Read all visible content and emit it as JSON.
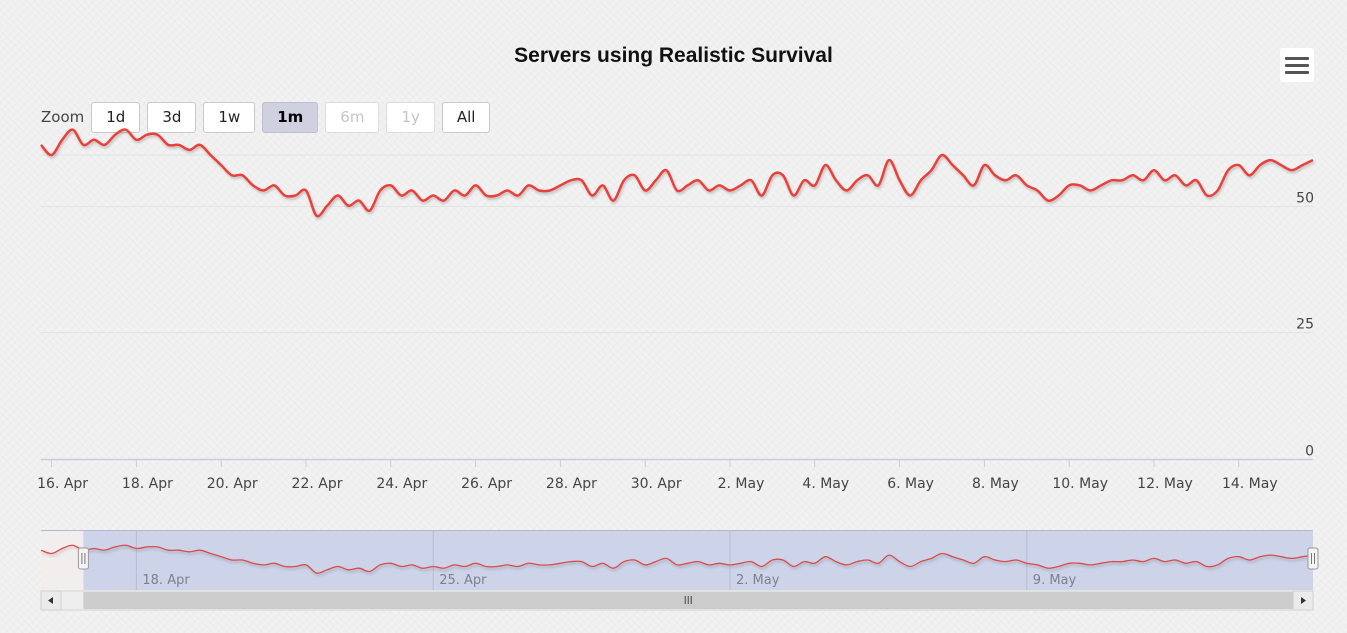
{
  "chart_data": {
    "type": "line",
    "title": "Servers using Realistic Survival",
    "zoom": {
      "label": "Zoom",
      "buttons": [
        {
          "label": "1d",
          "state": "normal"
        },
        {
          "label": "3d",
          "state": "normal"
        },
        {
          "label": "1w",
          "state": "normal"
        },
        {
          "label": "1m",
          "state": "active"
        },
        {
          "label": "6m",
          "state": "disabled"
        },
        {
          "label": "1y",
          "state": "disabled"
        },
        {
          "label": "All",
          "state": "normal"
        }
      ]
    },
    "xlim": [
      "2024-04-15T18:00",
      "2024-05-15T18:00"
    ],
    "ylim": [
      0,
      60
    ],
    "y_ticks": [
      0,
      25,
      50
    ],
    "x_ticks": [
      {
        "date": "2024-04-16",
        "label": "16. Apr"
      },
      {
        "date": "2024-04-18",
        "label": "18. Apr"
      },
      {
        "date": "2024-04-20",
        "label": "20. Apr"
      },
      {
        "date": "2024-04-22",
        "label": "22. Apr"
      },
      {
        "date": "2024-04-24",
        "label": "24. Apr"
      },
      {
        "date": "2024-04-26",
        "label": "26. Apr"
      },
      {
        "date": "2024-04-28",
        "label": "28. Apr"
      },
      {
        "date": "2024-04-30",
        "label": "30. Apr"
      },
      {
        "date": "2024-05-02",
        "label": "2. May"
      },
      {
        "date": "2024-05-04",
        "label": "4. May"
      },
      {
        "date": "2024-05-06",
        "label": "6. May"
      },
      {
        "date": "2024-05-08",
        "label": "8. May"
      },
      {
        "date": "2024-05-10",
        "label": "10. May"
      },
      {
        "date": "2024-05-12",
        "label": "12. May"
      },
      {
        "date": "2024-05-14",
        "label": "14. May"
      }
    ],
    "grid": true,
    "series": [
      {
        "color": "#e8403a",
        "x": [
          "2024-04-15T18:00",
          "2024-04-16T00:00",
          "2024-04-16T06:00",
          "2024-04-16T12:00",
          "2024-04-16T18:00",
          "2024-04-17T00:00",
          "2024-04-17T06:00",
          "2024-04-17T12:00",
          "2024-04-17T18:00",
          "2024-04-18T00:00",
          "2024-04-18T06:00",
          "2024-04-18T12:00",
          "2024-04-18T18:00",
          "2024-04-19T00:00",
          "2024-04-19T06:00",
          "2024-04-19T12:00",
          "2024-04-19T18:00",
          "2024-04-20T00:00",
          "2024-04-20T06:00",
          "2024-04-20T12:00",
          "2024-04-20T18:00",
          "2024-04-21T00:00",
          "2024-04-21T06:00",
          "2024-04-21T12:00",
          "2024-04-21T18:00",
          "2024-04-22T00:00",
          "2024-04-22T06:00",
          "2024-04-22T12:00",
          "2024-04-22T18:00",
          "2024-04-23T00:00",
          "2024-04-23T06:00",
          "2024-04-23T12:00",
          "2024-04-23T18:00",
          "2024-04-24T00:00",
          "2024-04-24T06:00",
          "2024-04-24T12:00",
          "2024-04-24T18:00",
          "2024-04-25T00:00",
          "2024-04-25T06:00",
          "2024-04-25T12:00",
          "2024-04-25T18:00",
          "2024-04-26T00:00",
          "2024-04-26T06:00",
          "2024-04-26T12:00",
          "2024-04-26T18:00",
          "2024-04-27T00:00",
          "2024-04-27T06:00",
          "2024-04-27T12:00",
          "2024-04-27T18:00",
          "2024-04-28T00:00",
          "2024-04-28T06:00",
          "2024-04-28T12:00",
          "2024-04-28T18:00",
          "2024-04-29T00:00",
          "2024-04-29T06:00",
          "2024-04-29T12:00",
          "2024-04-29T18:00",
          "2024-04-30T00:00",
          "2024-04-30T06:00",
          "2024-04-30T12:00",
          "2024-04-30T18:00",
          "2024-05-01T00:00",
          "2024-05-01T06:00",
          "2024-05-01T12:00",
          "2024-05-01T18:00",
          "2024-05-02T00:00",
          "2024-05-02T06:00",
          "2024-05-02T12:00",
          "2024-05-02T18:00",
          "2024-05-03T00:00",
          "2024-05-03T06:00",
          "2024-05-03T12:00",
          "2024-05-03T18:00",
          "2024-05-04T00:00",
          "2024-05-04T06:00",
          "2024-05-04T12:00",
          "2024-05-04T18:00",
          "2024-05-05T00:00",
          "2024-05-05T06:00",
          "2024-05-05T12:00",
          "2024-05-05T18:00",
          "2024-05-06T00:00",
          "2024-05-06T06:00",
          "2024-05-06T12:00",
          "2024-05-06T18:00",
          "2024-05-07T00:00",
          "2024-05-07T06:00",
          "2024-05-07T12:00",
          "2024-05-07T18:00",
          "2024-05-08T00:00",
          "2024-05-08T06:00",
          "2024-05-08T12:00",
          "2024-05-08T18:00",
          "2024-05-09T00:00",
          "2024-05-09T06:00",
          "2024-05-09T12:00",
          "2024-05-09T18:00",
          "2024-05-10T00:00",
          "2024-05-10T06:00",
          "2024-05-10T12:00",
          "2024-05-10T18:00",
          "2024-05-11T00:00",
          "2024-05-11T06:00",
          "2024-05-11T12:00",
          "2024-05-11T18:00",
          "2024-05-12T00:00",
          "2024-05-12T06:00",
          "2024-05-12T12:00",
          "2024-05-12T18:00",
          "2024-05-13T00:00",
          "2024-05-13T06:00",
          "2024-05-13T12:00",
          "2024-05-13T18:00",
          "2024-05-14T00:00",
          "2024-05-14T06:00",
          "2024-05-14T12:00",
          "2024-05-14T18:00",
          "2024-05-15T00:00",
          "2024-05-15T06:00",
          "2024-05-15T12:00",
          "2024-05-15T18:00"
        ],
        "values": [
          62,
          60,
          63,
          65,
          62,
          63,
          62,
          64,
          65,
          63,
          64,
          64,
          62,
          62,
          61,
          62,
          60,
          58,
          56,
          56,
          54,
          53,
          54,
          52,
          52,
          53,
          48,
          50,
          52,
          50,
          51,
          49,
          53,
          54,
          52,
          53,
          51,
          52,
          51,
          53,
          52,
          54,
          52,
          52,
          53,
          52,
          54,
          53,
          53,
          54,
          55,
          55,
          52,
          54,
          51,
          55,
          56,
          53,
          55,
          57,
          53,
          54,
          55,
          53,
          54,
          53,
          54,
          55,
          52,
          56,
          56,
          52,
          55,
          54,
          58,
          55,
          53,
          55,
          56,
          54,
          59,
          55,
          52,
          55,
          57,
          60,
          58,
          56,
          54,
          58,
          56,
          55,
          56,
          54,
          53,
          51,
          52,
          54,
          54,
          53,
          54,
          55,
          55,
          56,
          55,
          57,
          55,
          56,
          54,
          55,
          52,
          53,
          57,
          58,
          56,
          58,
          59,
          58,
          57,
          58,
          59
        ]
      }
    ],
    "navigator": {
      "visible_range": [
        "2024-04-16T18:00",
        "2024-05-15T18:00"
      ],
      "labels": [
        {
          "date": "2024-04-18",
          "label": "18. Apr"
        },
        {
          "date": "2024-04-25",
          "label": "25. Apr"
        },
        {
          "date": "2024-05-02",
          "label": "2. May"
        },
        {
          "date": "2024-05-09",
          "label": "9. May"
        }
      ]
    }
  },
  "icons": {
    "menu": "hamburger-menu-icon",
    "scroll_left": "◀",
    "scroll_right": "▶",
    "scroll_grip": "III",
    "handle_grip": "||"
  }
}
